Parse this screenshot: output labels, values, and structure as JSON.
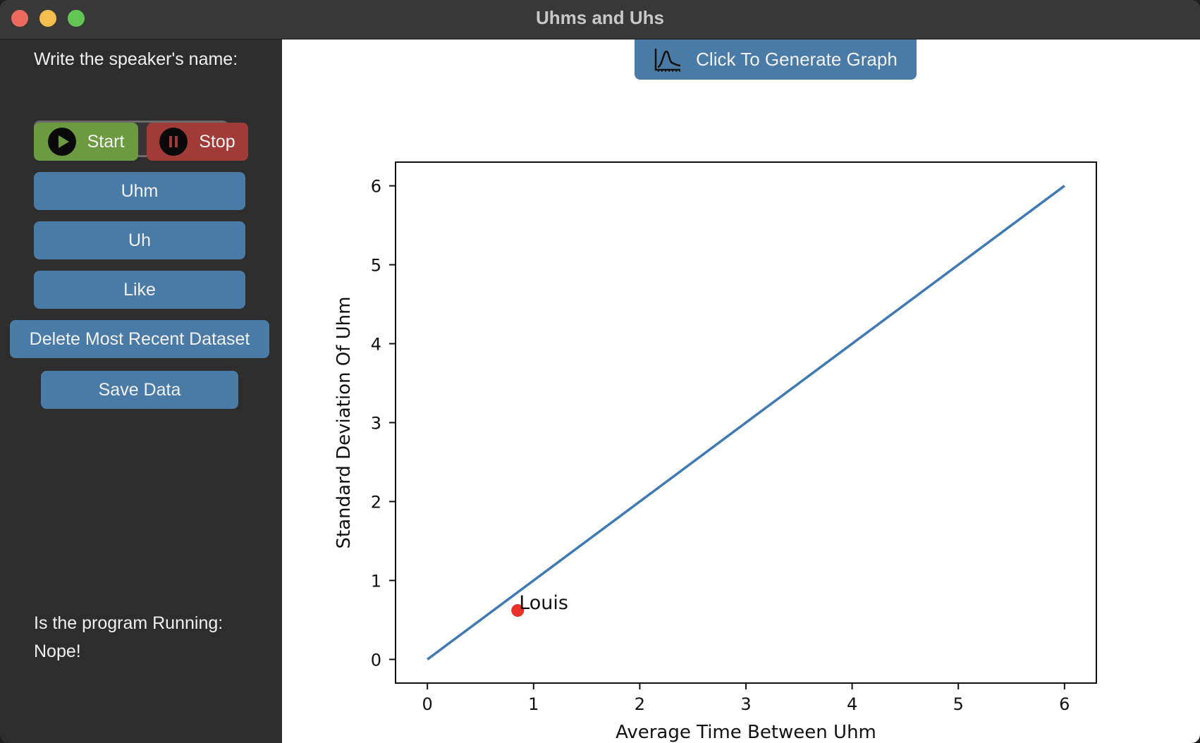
{
  "window": {
    "title": "Uhms and Uhs"
  },
  "sidebar": {
    "prompt_label": "Write the speaker's name:",
    "name_value": "Louis",
    "start_label": "Start",
    "stop_label": "Stop",
    "uhm_label": "Uhm",
    "uh_label": "Uh",
    "like_label": "Like",
    "delete_label": "Delete Most Recent Dataset",
    "save_label": "Save Data",
    "status_label": "Is the program Running:",
    "status_value": "Nope!"
  },
  "colors": {
    "accent_blue": "#4a7aa6",
    "start_green": "#6b9a41",
    "stop_red": "#a03b37",
    "line_color": "#3f7ab4",
    "point_color": "#e8312a"
  },
  "icons": {
    "start": "play-icon",
    "stop": "pause-icon",
    "generate": "graph-icon"
  },
  "main": {
    "generate_label": "Click To Generate Graph"
  },
  "chart_data": {
    "type": "line",
    "title": "",
    "xlabel": "Average Time Between Uhm",
    "ylabel": "Standard Deviation Of Uhm",
    "xlim": [
      -0.3,
      6.3
    ],
    "ylim": [
      -0.3,
      6.3
    ],
    "xticks": [
      0,
      1,
      2,
      3,
      4,
      5,
      6
    ],
    "yticks": [
      0,
      1,
      2,
      3,
      4,
      5,
      6
    ],
    "grid": false,
    "series": [
      {
        "type": "line",
        "x": [
          0,
          6
        ],
        "y": [
          0,
          6
        ]
      },
      {
        "type": "scatter",
        "x": [
          0.85
        ],
        "y": [
          0.62
        ],
        "labels": [
          "Louis"
        ]
      }
    ]
  }
}
